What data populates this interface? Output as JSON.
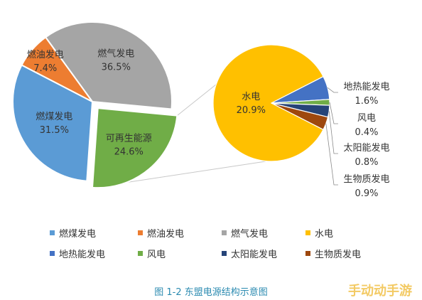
{
  "chart_data": [
    {
      "type": "pie",
      "categories": [
        "燃气发电",
        "可再生能源",
        "燃煤发电",
        "燃油发电"
      ],
      "values": [
        36.5,
        24.6,
        31.5,
        7.4
      ],
      "label_names": [
        "燃气发电",
        "可再生能源",
        "燃煤发电",
        "燃油发电"
      ],
      "label_values": [
        "36.5%",
        "24.6%",
        "31.5%",
        "7.4%"
      ],
      "colors": [
        "#a5a5a5",
        "#70ad47",
        "#5b9bd5",
        "#ed7d31"
      ],
      "exploded": "可再生能源"
    },
    {
      "type": "pie",
      "categories": [
        "水电",
        "地热能发电",
        "风电",
        "太阳能发电",
        "生物质发电"
      ],
      "values": [
        20.9,
        1.6,
        0.4,
        0.8,
        0.9
      ],
      "label_names": [
        "水电",
        "地热能发电",
        "风电",
        "太阳能发电",
        "生物质发电"
      ],
      "label_values": [
        "20.9%",
        "1.6%",
        "0.4%",
        "0.8%",
        "0.9%"
      ],
      "colors": [
        "#ffc000",
        "#4472c4",
        "#70ad47",
        "#264478",
        "#9e480e"
      ]
    }
  ],
  "legend": [
    {
      "label": "燃煤发电",
      "color": "#5b9bd5"
    },
    {
      "label": "燃油发电",
      "color": "#ed7d31"
    },
    {
      "label": "燃气发电",
      "color": "#a5a5a5"
    },
    {
      "label": "水电",
      "color": "#ffc000"
    },
    {
      "label": "地热能发电",
      "color": "#4472c4"
    },
    {
      "label": "风电",
      "color": "#70ad47"
    },
    {
      "label": "太阳能发电",
      "color": "#264478"
    },
    {
      "label": "生物质发电",
      "color": "#9e480e"
    }
  ],
  "caption": "图 1-2  东盟电源结构示意图",
  "watermark": "手动动手游"
}
